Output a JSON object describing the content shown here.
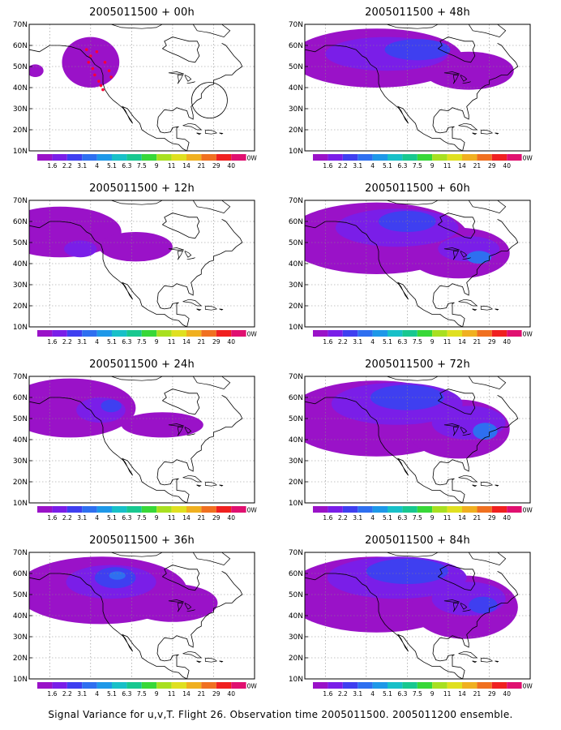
{
  "caption": "Signal Variance for u,v,T. Flight 26. Observation time 2005011500. 2005011200 ensemble.",
  "colors": [
    "#9a12c8",
    "#7a1ee8",
    "#3f3ff0",
    "#2e6ff0",
    "#1e98e8",
    "#18c0c8",
    "#18c890",
    "#38d838",
    "#a8e020",
    "#e0e020",
    "#f0b020",
    "#f07020",
    "#f02020",
    "#e01070"
  ],
  "chart_data": [
    {
      "type": "heatmap",
      "title": "2005011500 + 00h",
      "y_tick_labels": [
        "70N",
        "60N",
        "50N",
        "40N",
        "30N",
        "20N",
        "10N"
      ],
      "colorbar_labels": [
        "1.6",
        "2.2",
        "3.1",
        "4",
        "5.1",
        "6.3",
        "7.5",
        "9",
        "11",
        "14",
        "21",
        "29",
        "40"
      ],
      "colorbar_end": "0W",
      "blobs": [
        {
          "lon": -130,
          "lat": 52,
          "level": 1,
          "rx": 14,
          "ry": 12
        },
        {
          "lon": -157,
          "lat": 48,
          "level": 1,
          "rx": 4,
          "ry": 3
        }
      ]
    },
    {
      "type": "heatmap",
      "title": "2005011500 + 12h",
      "y_tick_labels": [
        "70N",
        "60N",
        "50N",
        "40N",
        "30N",
        "20N",
        "10N"
      ],
      "colorbar_labels": [
        "1.6",
        "2.2",
        "3.1",
        "4",
        "5.1",
        "6.3",
        "7.5",
        "9",
        "11",
        "14",
        "21",
        "29",
        "40"
      ],
      "colorbar_end": "0W",
      "blobs": [
        {
          "lon": -145,
          "lat": 55,
          "level": 1,
          "rx": 30,
          "ry": 12
        },
        {
          "lon": -108,
          "lat": 48,
          "level": 1,
          "rx": 18,
          "ry": 7
        },
        {
          "lon": -135,
          "lat": 47,
          "level": 2,
          "rx": 8,
          "ry": 4
        }
      ]
    },
    {
      "type": "heatmap",
      "title": "2005011500 + 24h",
      "y_tick_labels": [
        "70N",
        "60N",
        "50N",
        "40N",
        "30N",
        "20N",
        "10N"
      ],
      "colorbar_labels": [
        "1.6",
        "2.2",
        "3.1",
        "4",
        "5.1",
        "6.3",
        "7.5",
        "9",
        "11",
        "14",
        "21",
        "29",
        "40"
      ],
      "colorbar_end": "0W",
      "blobs": [
        {
          "lon": -140,
          "lat": 55,
          "level": 1,
          "rx": 32,
          "ry": 14
        },
        {
          "lon": -95,
          "lat": 47,
          "level": 1,
          "rx": 20,
          "ry": 6
        },
        {
          "lon": -125,
          "lat": 54,
          "level": 2,
          "rx": 12,
          "ry": 6
        },
        {
          "lon": -120,
          "lat": 56,
          "level": 3,
          "rx": 5,
          "ry": 3
        }
      ]
    },
    {
      "type": "heatmap",
      "title": "2005011500 + 36h",
      "y_tick_labels": [
        "70N",
        "60N",
        "50N",
        "40N",
        "30N",
        "20N",
        "10N"
      ],
      "colorbar_labels": [
        "1.6",
        "2.2",
        "3.1",
        "4",
        "5.1",
        "6.3",
        "7.5",
        "9",
        "11",
        "14",
        "21",
        "29",
        "40"
      ],
      "colorbar_end": "0W",
      "blobs": [
        {
          "lon": -125,
          "lat": 52,
          "level": 1,
          "rx": 42,
          "ry": 16
        },
        {
          "lon": -90,
          "lat": 46,
          "level": 1,
          "rx": 22,
          "ry": 9
        },
        {
          "lon": -120,
          "lat": 56,
          "level": 2,
          "rx": 22,
          "ry": 8
        },
        {
          "lon": -118,
          "lat": 58,
          "level": 3,
          "rx": 10,
          "ry": 5
        },
        {
          "lon": -117,
          "lat": 59,
          "level": 4,
          "rx": 4,
          "ry": 2
        }
      ]
    },
    {
      "type": "heatmap",
      "title": "2005011500 + 48h",
      "y_tick_labels": [
        "70N",
        "60N",
        "50N",
        "40N",
        "30N",
        "20N",
        "10N"
      ],
      "colorbar_labels": [
        "1.6",
        "2.2",
        "3.1",
        "4",
        "5.1",
        "6.3",
        "7.5",
        "9",
        "11",
        "14",
        "21",
        "29",
        "40"
      ],
      "colorbar_end": "0W",
      "blobs": [
        {
          "lon": -125,
          "lat": 54,
          "level": 1,
          "rx": 42,
          "ry": 14
        },
        {
          "lon": -80,
          "lat": 48,
          "level": 1,
          "rx": 22,
          "ry": 9
        },
        {
          "lon": -120,
          "lat": 56,
          "level": 2,
          "rx": 30,
          "ry": 8
        },
        {
          "lon": -105,
          "lat": 58,
          "level": 3,
          "rx": 16,
          "ry": 5
        }
      ]
    },
    {
      "type": "heatmap",
      "title": "2005011500 + 60h",
      "y_tick_labels": [
        "70N",
        "60N",
        "50N",
        "40N",
        "30N",
        "20N",
        "10N"
      ],
      "colorbar_labels": [
        "1.6",
        "2.2",
        "3.1",
        "4",
        "5.1",
        "6.3",
        "7.5",
        "9",
        "11",
        "14",
        "21",
        "29",
        "40"
      ],
      "colorbar_end": "0W",
      "blobs": [
        {
          "lon": -125,
          "lat": 52,
          "level": 1,
          "rx": 45,
          "ry": 17
        },
        {
          "lon": -85,
          "lat": 45,
          "level": 1,
          "rx": 25,
          "ry": 12
        },
        {
          "lon": -115,
          "lat": 57,
          "level": 2,
          "rx": 30,
          "ry": 9
        },
        {
          "lon": -80,
          "lat": 47,
          "level": 2,
          "rx": 15,
          "ry": 6
        },
        {
          "lon": -110,
          "lat": 60,
          "level": 3,
          "rx": 14,
          "ry": 5
        },
        {
          "lon": -75,
          "lat": 43,
          "level": 4,
          "rx": 6,
          "ry": 3
        }
      ]
    },
    {
      "type": "heatmap",
      "title": "2005011500 + 72h",
      "y_tick_labels": [
        "70N",
        "60N",
        "50N",
        "40N",
        "30N",
        "20N",
        "10N"
      ],
      "colorbar_labels": [
        "1.6",
        "2.2",
        "3.1",
        "4",
        "5.1",
        "6.3",
        "7.5",
        "9",
        "11",
        "14",
        "21",
        "29",
        "40"
      ],
      "colorbar_end": "0W",
      "blobs": [
        {
          "lon": -125,
          "lat": 50,
          "level": 1,
          "rx": 45,
          "ry": 18
        },
        {
          "lon": -85,
          "lat": 45,
          "level": 1,
          "rx": 25,
          "ry": 14
        },
        {
          "lon": -115,
          "lat": 57,
          "level": 2,
          "rx": 32,
          "ry": 10
        },
        {
          "lon": -80,
          "lat": 48,
          "level": 2,
          "rx": 18,
          "ry": 8
        },
        {
          "lon": -110,
          "lat": 60,
          "level": 3,
          "rx": 18,
          "ry": 6
        },
        {
          "lon": -72,
          "lat": 44,
          "level": 4,
          "rx": 6,
          "ry": 4
        }
      ]
    },
    {
      "type": "heatmap",
      "title": "2005011500 + 84h",
      "y_tick_labels": [
        "70N",
        "60N",
        "50N",
        "40N",
        "30N",
        "20N",
        "10N"
      ],
      "colorbar_labels": [
        "1.6",
        "2.2",
        "3.1",
        "4",
        "5.1",
        "6.3",
        "7.5",
        "9",
        "11",
        "14",
        "21",
        "29",
        "40"
      ],
      "colorbar_end": "0W",
      "blobs": [
        {
          "lon": -125,
          "lat": 50,
          "level": 1,
          "rx": 45,
          "ry": 18
        },
        {
          "lon": -82,
          "lat": 44,
          "level": 1,
          "rx": 26,
          "ry": 15
        },
        {
          "lon": -115,
          "lat": 58,
          "level": 2,
          "rx": 34,
          "ry": 10
        },
        {
          "lon": -80,
          "lat": 48,
          "level": 2,
          "rx": 18,
          "ry": 8
        },
        {
          "lon": -110,
          "lat": 61,
          "level": 3,
          "rx": 20,
          "ry": 6
        },
        {
          "lon": -73,
          "lat": 45,
          "level": 3,
          "rx": 7,
          "ry": 4
        }
      ]
    }
  ]
}
